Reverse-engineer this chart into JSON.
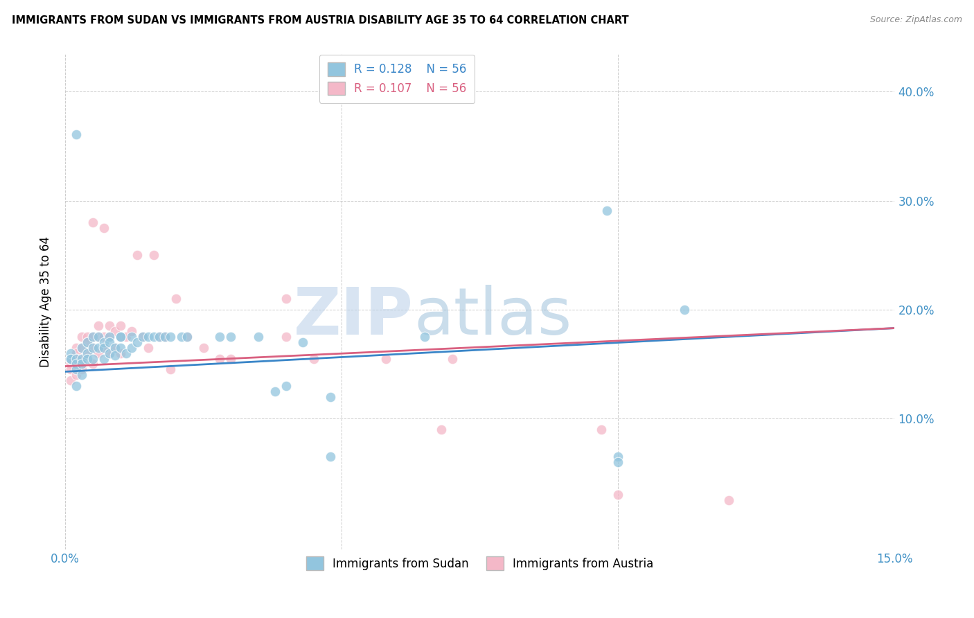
{
  "title": "IMMIGRANTS FROM SUDAN VS IMMIGRANTS FROM AUSTRIA DISABILITY AGE 35 TO 64 CORRELATION CHART",
  "source": "Source: ZipAtlas.com",
  "ylabel": "Disability Age 35 to 64",
  "xlim": [
    0.0,
    0.15
  ],
  "ylim": [
    -0.02,
    0.435
  ],
  "R_sudan": 0.128,
  "N_sudan": 56,
  "R_austria": 0.107,
  "N_austria": 56,
  "color_sudan": "#92c5de",
  "color_austria": "#f4b8c8",
  "line_color_sudan": "#3a86c8",
  "line_color_austria": "#d96080",
  "background_color": "#ffffff",
  "grid_color": "#cccccc",
  "watermark_color": "#c8d8f0",
  "legend_label_sudan": "Immigrants from Sudan",
  "legend_label_austria": "Immigrants from Austria",
  "sudan_x": [
    0.001,
    0.001,
    0.001,
    0.002,
    0.002,
    0.002,
    0.002,
    0.003,
    0.003,
    0.003,
    0.003,
    0.004,
    0.004,
    0.004,
    0.005,
    0.005,
    0.005,
    0.006,
    0.006,
    0.007,
    0.007,
    0.007,
    0.008,
    0.008,
    0.008,
    0.009,
    0.009,
    0.01,
    0.01,
    0.011,
    0.012,
    0.012,
    0.013,
    0.014,
    0.015,
    0.016,
    0.017,
    0.018,
    0.019,
    0.021,
    0.022,
    0.028,
    0.03,
    0.035,
    0.038,
    0.04,
    0.043,
    0.048,
    0.048,
    0.065,
    0.098,
    0.1,
    0.1,
    0.112,
    0.002,
    0.01
  ],
  "sudan_y": [
    0.155,
    0.16,
    0.155,
    0.155,
    0.15,
    0.145,
    0.13,
    0.165,
    0.155,
    0.15,
    0.14,
    0.17,
    0.16,
    0.155,
    0.175,
    0.165,
    0.155,
    0.175,
    0.165,
    0.17,
    0.165,
    0.155,
    0.175,
    0.17,
    0.16,
    0.165,
    0.158,
    0.175,
    0.165,
    0.16,
    0.175,
    0.165,
    0.17,
    0.175,
    0.175,
    0.175,
    0.175,
    0.175,
    0.175,
    0.175,
    0.175,
    0.175,
    0.175,
    0.175,
    0.125,
    0.13,
    0.17,
    0.12,
    0.065,
    0.175,
    0.291,
    0.065,
    0.06,
    0.2,
    0.361,
    0.175
  ],
  "austria_x": [
    0.001,
    0.001,
    0.001,
    0.001,
    0.002,
    0.002,
    0.002,
    0.002,
    0.003,
    0.003,
    0.003,
    0.003,
    0.004,
    0.004,
    0.004,
    0.005,
    0.005,
    0.005,
    0.005,
    0.006,
    0.006,
    0.006,
    0.007,
    0.007,
    0.007,
    0.008,
    0.008,
    0.008,
    0.009,
    0.009,
    0.01,
    0.01,
    0.01,
    0.011,
    0.012,
    0.013,
    0.014,
    0.015,
    0.016,
    0.017,
    0.018,
    0.019,
    0.02,
    0.022,
    0.025,
    0.028,
    0.03,
    0.04,
    0.04,
    0.045,
    0.058,
    0.068,
    0.07,
    0.097,
    0.1,
    0.12
  ],
  "austria_y": [
    0.155,
    0.15,
    0.145,
    0.135,
    0.165,
    0.16,
    0.155,
    0.14,
    0.175,
    0.165,
    0.155,
    0.145,
    0.175,
    0.17,
    0.16,
    0.28,
    0.175,
    0.165,
    0.15,
    0.185,
    0.175,
    0.16,
    0.275,
    0.175,
    0.165,
    0.185,
    0.175,
    0.16,
    0.18,
    0.165,
    0.185,
    0.175,
    0.16,
    0.175,
    0.18,
    0.25,
    0.175,
    0.165,
    0.25,
    0.175,
    0.175,
    0.145,
    0.21,
    0.175,
    0.165,
    0.155,
    0.155,
    0.21,
    0.175,
    0.155,
    0.155,
    0.09,
    0.155,
    0.09,
    0.03,
    0.025
  ],
  "line_sudan_x0": 0.0,
  "line_sudan_y0": 0.143,
  "line_sudan_x1": 0.15,
  "line_sudan_y1": 0.183,
  "line_austria_x0": 0.0,
  "line_austria_y0": 0.148,
  "line_austria_x1": 0.15,
  "line_austria_y1": 0.183
}
